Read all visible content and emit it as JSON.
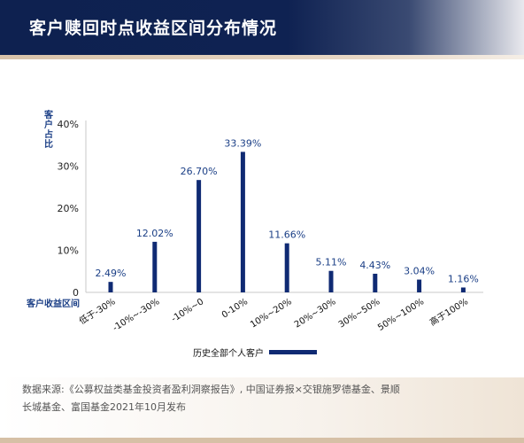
{
  "header": {
    "title": "客户赎回时点收益区间分布情况"
  },
  "chart_data": {
    "type": "bar",
    "ylabel": "客户占比",
    "xlabel": "客户收益区间",
    "ylim": [
      0,
      40
    ],
    "yticks": [
      {
        "value": 0,
        "label": "0"
      },
      {
        "value": 10,
        "label": "10%"
      },
      {
        "value": 20,
        "label": "20%"
      },
      {
        "value": 30,
        "label": "30%"
      },
      {
        "value": 40,
        "label": "40%"
      }
    ],
    "categories": [
      "低于-30%",
      "-10%~-30%",
      "-10%~0",
      "0-10%",
      "10%~20%",
      "20%~30%",
      "30%~50%",
      "50%~100%",
      "高于100%"
    ],
    "series": [
      {
        "name": "历史全部个人客户",
        "values": [
          2.49,
          12.02,
          26.7,
          33.39,
          11.66,
          5.11,
          4.43,
          3.04,
          1.16
        ],
        "labels": [
          "2.49%",
          "12.02%",
          "26.70%",
          "33.39%",
          "11.66%",
          "5.11%",
          "4.43%",
          "3.04%",
          "1.16%"
        ]
      }
    ],
    "legend": "bottom",
    "grid": false
  },
  "colors": {
    "bar": "#0f2a73",
    "label": "#1b3f86",
    "axis": "#c8c8c8"
  },
  "footer": {
    "source_line1": "数据来源:《公募权益类基金投资者盈利洞察报告》, 中国证券报×交银施罗德基金、景顺",
    "source_line2": "长城基金、富国基金2021年10月发布"
  }
}
